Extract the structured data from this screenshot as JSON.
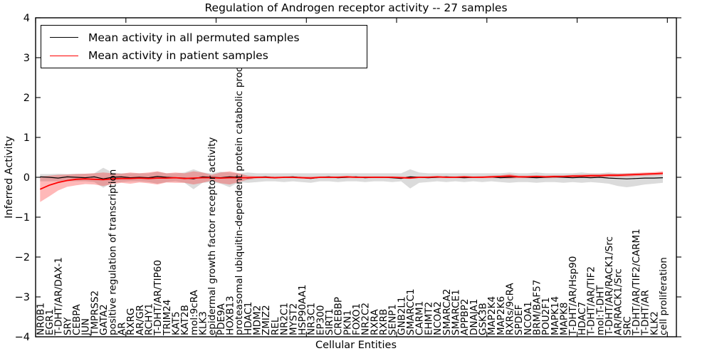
{
  "chart_data": {
    "type": "line",
    "title": "Regulation of Androgen receptor activity -- 27 samples",
    "xlabel": "Cellular Entities",
    "ylabel": "Inferred Activity",
    "ylim": [
      -4,
      4
    ],
    "yticks": [
      -4,
      -3,
      -2,
      -1,
      0,
      1,
      2,
      3,
      4
    ],
    "xlim": [
      0,
      71
    ],
    "xtick_step": 10,
    "grid": false,
    "legend_position": "upper left",
    "background_color": "#ffffff",
    "axis_color": "#000000",
    "categories": [
      "NR0B1",
      "EGR1",
      "T-DHT/AR/DAX-1",
      "SRY",
      "CEBPA",
      "JUN",
      "TMPRSS2",
      "GATA2",
      "positive regulation of transcription",
      "AR",
      "RXRG",
      "AR/GR",
      "RCHY1",
      "T-DHT/AR/TIP60",
      "TRIM24",
      "KAT5",
      "KAT2B",
      "mol:9cRA",
      "KLK3",
      "epidermal growth factor receptor activity",
      "PDE9A",
      "HOXB13",
      "proteasomal ubiquitin-dependent protein catabolic process",
      "HDAC1",
      "MDM2",
      "ZMIZ2",
      "REL",
      "NR2C1",
      "MYST2",
      "HSP90AA1",
      "NR3C1",
      "EP300",
      "SIRT1",
      "CREBBP",
      "PKN1",
      "FOXO1",
      "NR2C2",
      "RXRA",
      "RXRB",
      "SENP1",
      "GNB2L1",
      "SMARCC1",
      "CARM1",
      "EHMT2",
      "NCOA2",
      "SMARCA2",
      "SMARCE1",
      "APPBP2",
      "DNAJA1",
      "GSK3B",
      "MAP2K4",
      "MAP2K6",
      "RXRs/9cRA",
      "SPDEF",
      "NCOA1",
      "BRM/BAF57",
      "POU2F1",
      "MAPK14",
      "MAPK8",
      "T-DHT/AR/Hsp90",
      "HDAC7",
      "T-DHT/AR/TIF2",
      "mol:T-DHT",
      "T-DHT/AR/RACK1/Src",
      "AR/RACK1/Src",
      "SRC",
      "T-DHT/AR/TIF2/CARM1",
      "T-DHT/AR",
      "KLK2",
      "cell proliferation"
    ],
    "series": [
      {
        "name": "Mean activity in all permuted samples",
        "color": "#000000",
        "line_width": 1.2,
        "band_color": "rgba(0,0,0,0.14)",
        "values": [
          0.01,
          0.0,
          -0.02,
          0.01,
          0.0,
          -0.01,
          0.01,
          -0.04,
          0.0,
          0.01,
          -0.01,
          0.0,
          -0.01,
          0.02,
          0.0,
          -0.01,
          -0.02,
          -0.04,
          0.01,
          0.0,
          -0.01,
          0.01,
          0.0,
          -0.02,
          0.0,
          0.01,
          -0.01,
          0.0,
          0.01,
          -0.01,
          -0.03,
          0.0,
          0.01,
          -0.01,
          0.0,
          0.01,
          -0.01,
          0.0,
          0.0,
          -0.01,
          -0.03,
          0.01,
          0.0,
          -0.01,
          0.0,
          0.01,
          0.0,
          -0.01,
          0.0,
          0.0,
          0.01,
          -0.01,
          0.0,
          0.01,
          0.0,
          -0.01,
          0.0,
          0.01,
          0.0,
          -0.01,
          0.0,
          -0.01,
          0.0,
          -0.02,
          -0.03,
          -0.04,
          -0.03,
          -0.02,
          -0.02,
          -0.01
        ],
        "band_upper": [
          0.08,
          0.08,
          0.09,
          0.08,
          0.09,
          0.09,
          0.1,
          0.24,
          0.12,
          0.1,
          0.1,
          0.1,
          0.1,
          0.14,
          0.1,
          0.1,
          0.12,
          0.2,
          0.12,
          0.1,
          0.14,
          0.12,
          0.1,
          0.12,
          0.1,
          0.1,
          0.1,
          0.1,
          0.1,
          0.1,
          0.1,
          0.1,
          0.1,
          0.1,
          0.1,
          0.1,
          0.1,
          0.1,
          0.1,
          0.1,
          0.1,
          0.2,
          0.12,
          0.1,
          0.1,
          0.1,
          0.1,
          0.1,
          0.1,
          0.1,
          0.1,
          0.1,
          0.12,
          0.1,
          0.1,
          0.12,
          0.1,
          0.1,
          0.1,
          0.1,
          0.12,
          0.1,
          0.1,
          0.12,
          0.1,
          0.1,
          0.1,
          0.1,
          0.1,
          0.1
        ],
        "band_lower": [
          -0.1,
          -0.1,
          -0.1,
          -0.1,
          -0.1,
          -0.1,
          -0.12,
          -0.26,
          -0.14,
          -0.12,
          -0.1,
          -0.1,
          -0.12,
          -0.16,
          -0.12,
          -0.1,
          -0.14,
          -0.3,
          -0.14,
          -0.12,
          -0.16,
          -0.25,
          -0.12,
          -0.14,
          -0.12,
          -0.1,
          -0.1,
          -0.12,
          -0.1,
          -0.12,
          -0.14,
          -0.1,
          -0.1,
          -0.12,
          -0.1,
          -0.1,
          -0.12,
          -0.1,
          -0.1,
          -0.12,
          -0.1,
          -0.28,
          -0.14,
          -0.12,
          -0.1,
          -0.12,
          -0.1,
          -0.12,
          -0.1,
          -0.12,
          -0.1,
          -0.12,
          -0.14,
          -0.12,
          -0.12,
          -0.14,
          -0.12,
          -0.12,
          -0.14,
          -0.12,
          -0.14,
          -0.12,
          -0.14,
          -0.16,
          -0.22,
          -0.25,
          -0.22,
          -0.18,
          -0.16,
          -0.14
        ]
      },
      {
        "name": "Mean activity in patient samples",
        "color": "#ff0000",
        "line_width": 1.8,
        "band_color": "rgba(255,0,0,0.28)",
        "values": [
          -0.3,
          -0.2,
          -0.13,
          -0.08,
          -0.05,
          -0.04,
          -0.05,
          -0.06,
          -0.04,
          -0.03,
          -0.03,
          -0.02,
          -0.03,
          -0.02,
          -0.02,
          -0.01,
          -0.03,
          -0.02,
          -0.01,
          -0.01,
          -0.02,
          -0.01,
          -0.01,
          -0.01,
          0.0,
          0.0,
          -0.01,
          0.0,
          0.0,
          -0.01,
          -0.02,
          0.0,
          0.0,
          0.0,
          0.01,
          0.0,
          0.0,
          0.0,
          0.0,
          0.0,
          -0.01,
          -0.02,
          0.0,
          0.0,
          0.01,
          0.0,
          0.0,
          0.01,
          0.0,
          0.0,
          0.01,
          0.02,
          0.03,
          0.01,
          0.01,
          0.02,
          0.01,
          0.02,
          0.02,
          0.03,
          0.03,
          0.04,
          0.04,
          0.05,
          0.05,
          0.06,
          0.07,
          0.08,
          0.09,
          0.1
        ],
        "band_upper": [
          0.02,
          0.04,
          0.06,
          0.07,
          0.08,
          0.09,
          0.1,
          0.12,
          0.1,
          0.09,
          0.12,
          0.1,
          0.12,
          0.15,
          0.1,
          0.12,
          0.1,
          0.15,
          0.12,
          0.06,
          0.12,
          0.15,
          0.1,
          0.04,
          0.02,
          0.02,
          0.02,
          0.02,
          0.02,
          0.02,
          0.02,
          0.02,
          0.02,
          0.02,
          0.03,
          0.02,
          0.02,
          0.02,
          0.02,
          0.02,
          0.02,
          0.02,
          0.02,
          0.02,
          0.03,
          0.02,
          0.02,
          0.03,
          0.02,
          0.03,
          0.04,
          0.05,
          0.08,
          0.04,
          0.04,
          0.05,
          0.04,
          0.05,
          0.05,
          0.06,
          0.07,
          0.08,
          0.08,
          0.09,
          0.09,
          0.1,
          0.11,
          0.12,
          0.13,
          0.15
        ],
        "band_lower": [
          -0.62,
          -0.48,
          -0.33,
          -0.24,
          -0.2,
          -0.17,
          -0.18,
          -0.22,
          -0.17,
          -0.14,
          -0.16,
          -0.13,
          -0.15,
          -0.18,
          -0.13,
          -0.14,
          -0.14,
          -0.18,
          -0.14,
          -0.08,
          -0.15,
          -0.18,
          -0.12,
          -0.06,
          -0.03,
          -0.02,
          -0.03,
          -0.02,
          -0.02,
          -0.03,
          -0.04,
          -0.02,
          -0.02,
          -0.02,
          -0.02,
          -0.02,
          -0.02,
          -0.02,
          -0.02,
          -0.02,
          -0.03,
          -0.04,
          -0.02,
          -0.02,
          -0.02,
          -0.02,
          -0.02,
          -0.02,
          -0.02,
          -0.02,
          -0.02,
          -0.02,
          -0.03,
          -0.02,
          -0.02,
          -0.02,
          -0.02,
          -0.02,
          -0.01,
          -0.01,
          0.0,
          0.0,
          0.0,
          0.01,
          0.01,
          0.02,
          0.03,
          0.04,
          0.05,
          0.06
        ]
      }
    ]
  }
}
